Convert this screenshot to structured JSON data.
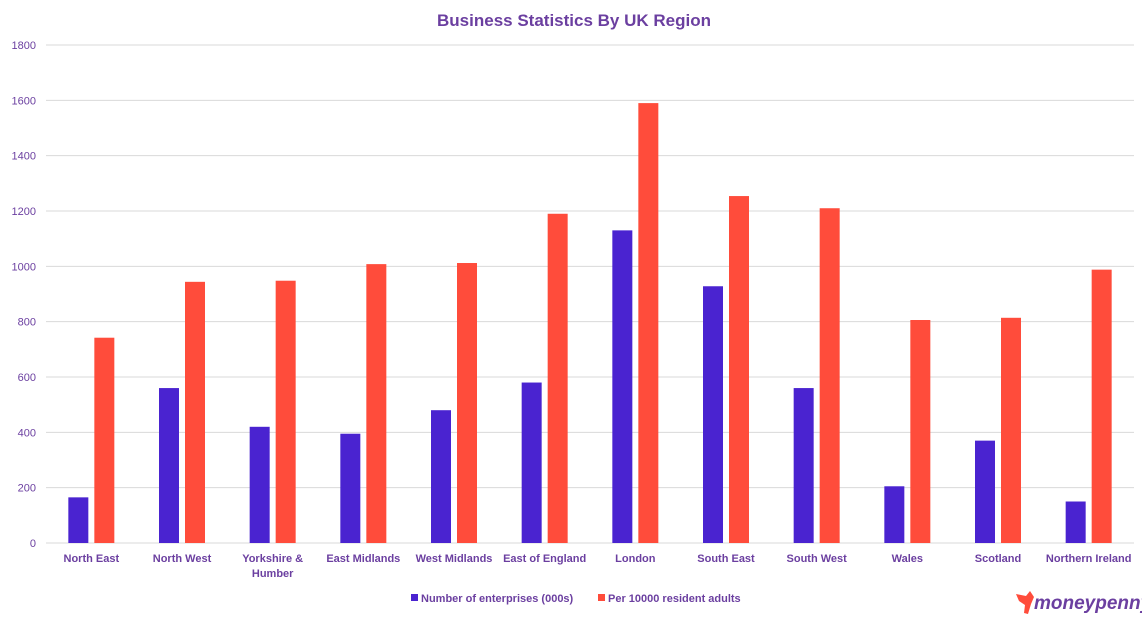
{
  "chart_data": {
    "type": "bar",
    "title": "Business Statistics By UK Region",
    "xlabel": "",
    "ylabel": "",
    "ylim": [
      0,
      1800
    ],
    "yticks": [
      0,
      200,
      400,
      600,
      800,
      1000,
      1200,
      1400,
      1600,
      1800
    ],
    "grid": true,
    "legend_position": "bottom",
    "categories": [
      "North East",
      "North West",
      "Yorkshire & Humber",
      "East Midlands",
      "West Midlands",
      "East of England",
      "London",
      "South East",
      "South West",
      "Wales",
      "Scotland",
      "Northern Ireland"
    ],
    "series": [
      {
        "name": "Number of enterprises (000s)",
        "color": "#4a23d0",
        "values": [
          165,
          560,
          420,
          395,
          480,
          580,
          1130,
          928,
          560,
          205,
          370,
          150
        ]
      },
      {
        "name": "Per 10000 resident adults",
        "color": "#ff4c3b",
        "values": [
          742,
          944,
          948,
          1008,
          1012,
          1190,
          1590,
          1254,
          1210,
          806,
          814,
          988
        ]
      }
    ]
  },
  "colors": {
    "title": "#6b3fa0",
    "axis_text": "#6b3fa0",
    "grid": "#d9d9d9",
    "logo_mark": "#ff4c3b"
  },
  "logo": {
    "text": "moneypenny"
  }
}
